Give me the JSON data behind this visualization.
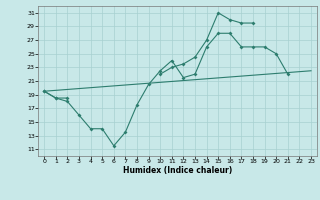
{
  "title": "",
  "xlabel": "Humidex (Indice chaleur)",
  "bg_color": "#c8e8e8",
  "grid_color": "#a8d0d0",
  "line_color": "#2d7d6e",
  "xlim": [
    -0.5,
    23.5
  ],
  "ylim": [
    10.0,
    32.0
  ],
  "xticks": [
    0,
    1,
    2,
    3,
    4,
    5,
    6,
    7,
    8,
    9,
    10,
    11,
    12,
    13,
    14,
    15,
    16,
    17,
    18,
    19,
    20,
    21,
    22,
    23
  ],
  "yticks": [
    11,
    13,
    15,
    17,
    19,
    21,
    23,
    25,
    27,
    29,
    31
  ],
  "line1_x": [
    0,
    1,
    2,
    3,
    4,
    5,
    6,
    7,
    8,
    9,
    10,
    11,
    12,
    13,
    14,
    15,
    16,
    17,
    18,
    19,
    20,
    21
  ],
  "line1_y": [
    19.5,
    18.5,
    18.0,
    16.0,
    14.0,
    14.0,
    11.5,
    13.5,
    17.5,
    20.5,
    22.5,
    24.0,
    21.5,
    22.0,
    26.0,
    28.0,
    28.0,
    26.0,
    26.0,
    26.0,
    25.0,
    22.0
  ],
  "line2_x": [
    0,
    1,
    2,
    10,
    11,
    12,
    13,
    14,
    15,
    16,
    17,
    18
  ],
  "line2_y": [
    19.5,
    18.5,
    18.5,
    22.0,
    23.0,
    23.5,
    24.5,
    27.0,
    31.0,
    30.0,
    29.5,
    29.5
  ],
  "line3_x": [
    0,
    23
  ],
  "line3_y": [
    19.5,
    22.5
  ]
}
